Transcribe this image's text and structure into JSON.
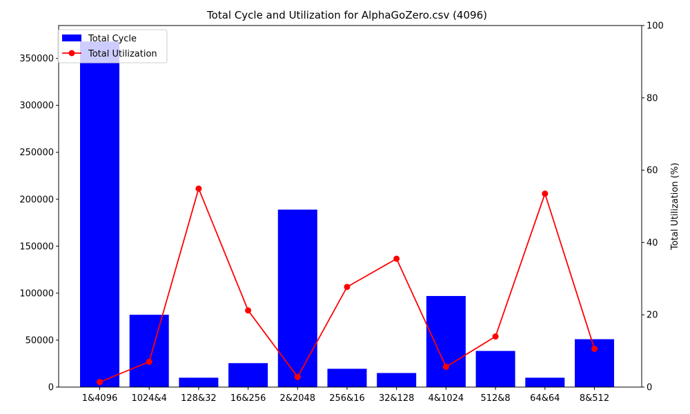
{
  "chart_data": {
    "type": "bar+line",
    "title": "Total Cycle and Utilization for AlphaGoZero.csv (4096)",
    "xlabel": "",
    "ylabel_left": "",
    "ylabel_right": "Total Utilization (%)",
    "categories": [
      "1&4096",
      "1024&4",
      "128&32",
      "16&256",
      "2&2048",
      "256&16",
      "32&128",
      "4&1024",
      "512&8",
      "64&64",
      "8&512"
    ],
    "series": [
      {
        "name": "Total Cycle",
        "type": "bar",
        "axis": "left",
        "color": "#0000ff",
        "values": [
          368000,
          77000,
          10000,
          25500,
          189000,
          19500,
          15000,
          97000,
          38500,
          10000,
          51000
        ]
      },
      {
        "name": "Total Utilization",
        "type": "line",
        "axis": "right",
        "color": "#ff0000",
        "marker": "circle",
        "values": [
          1.4,
          7.0,
          54.9,
          21.2,
          2.8,
          27.7,
          35.5,
          5.6,
          14.0,
          53.5,
          10.6
        ]
      }
    ],
    "ylim_left": [
      0,
      385000
    ],
    "yticks_left": [
      0,
      50000,
      100000,
      150000,
      200000,
      250000,
      300000,
      350000
    ],
    "ylim_right": [
      0,
      100
    ],
    "yticks_right": [
      0,
      20,
      40,
      60,
      80,
      100
    ],
    "legend_position": "top-left",
    "grid": false
  }
}
